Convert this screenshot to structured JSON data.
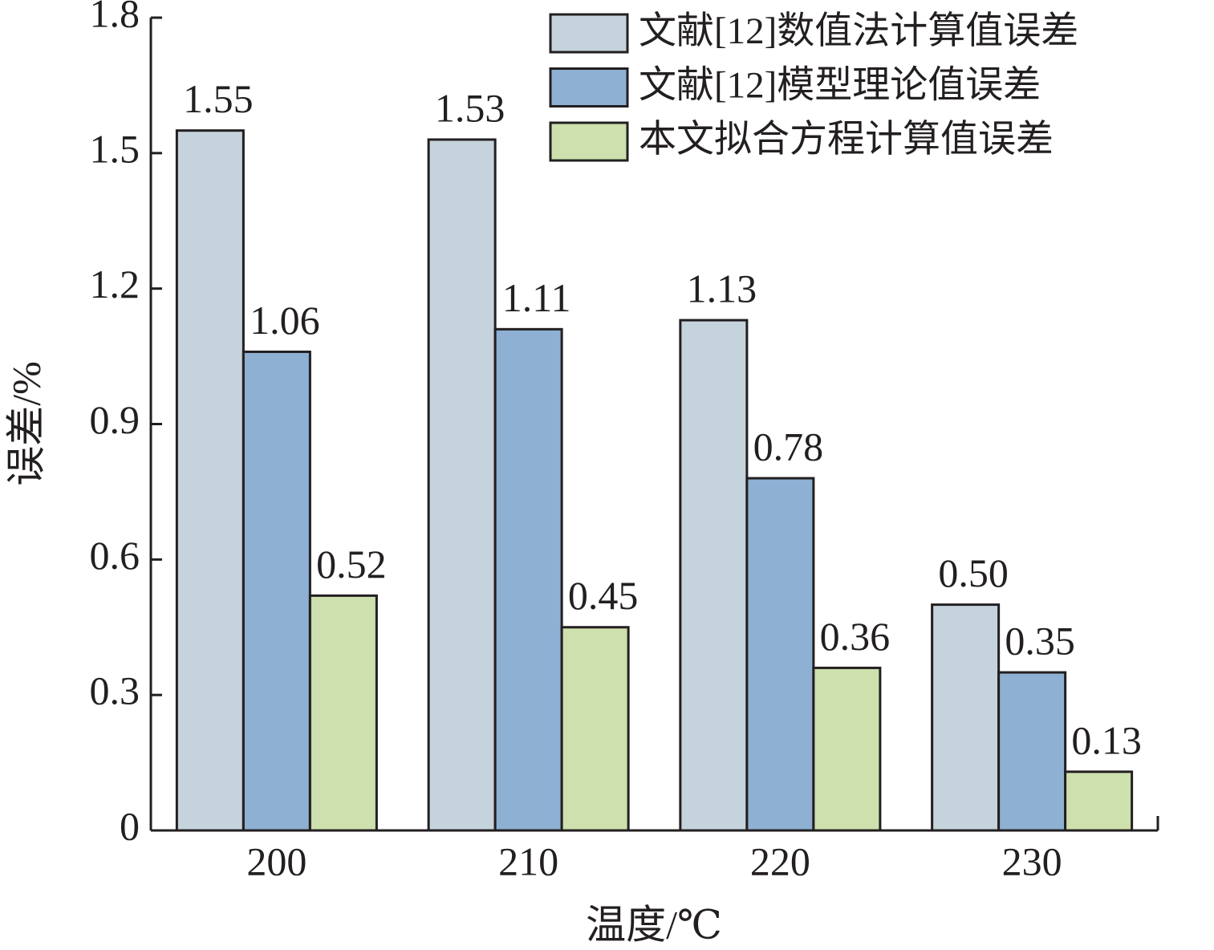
{
  "chart_data": {
    "type": "bar",
    "xlabel": "温度/℃",
    "ylabel": "误差/%",
    "categories": [
      "200",
      "210",
      "220",
      "230"
    ],
    "series": [
      {
        "name": "文献[12]数值法计算值误差",
        "color": "#c5d3dc",
        "values": [
          1.55,
          1.53,
          1.13,
          0.5
        ],
        "value_labels": [
          "1.55",
          "1.53",
          "1.13",
          "0.50"
        ]
      },
      {
        "name": "文献[12]模型理论值误差",
        "color": "#8eb0d3",
        "values": [
          1.06,
          1.11,
          0.78,
          0.35
        ],
        "value_labels": [
          "1.06",
          "1.11",
          "0.78",
          "0.35"
        ]
      },
      {
        "name": "本文拟合方程计算值误差",
        "color": "#cde0ad",
        "values": [
          0.52,
          0.45,
          0.36,
          0.13
        ],
        "value_labels": [
          "0.52",
          "0.45",
          "0.36",
          "0.13"
        ]
      }
    ],
    "ylim": [
      0,
      1.8
    ],
    "yticks": [
      0,
      0.3,
      0.6,
      0.9,
      1.2,
      1.5,
      1.8
    ],
    "legend": "upper right"
  }
}
